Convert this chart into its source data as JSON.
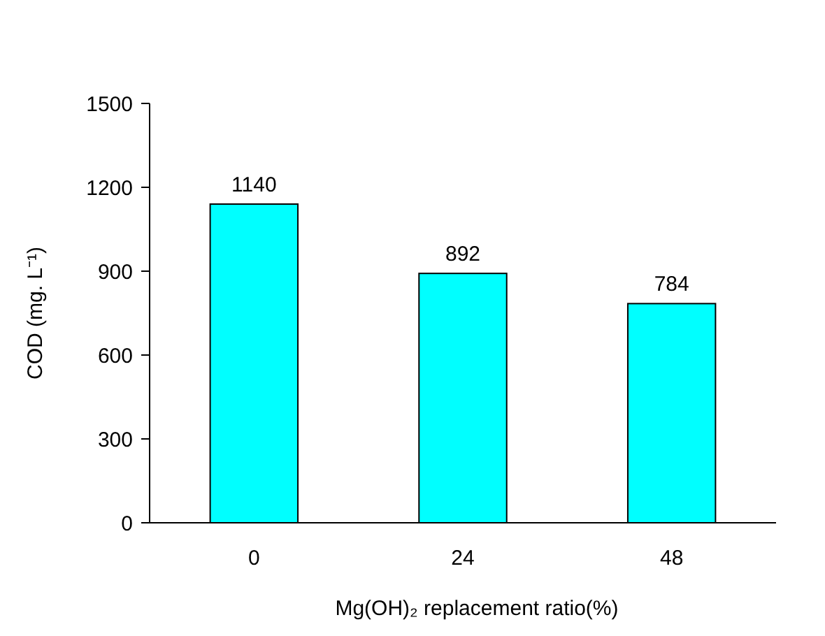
{
  "chart_data": {
    "type": "bar",
    "xlabel": "Mg(OH)₂ replacement ratio(%)",
    "ylabel": "COD (mg. L⁻¹)",
    "categories": [
      "0",
      "24",
      "48"
    ],
    "values": [
      1140,
      892,
      784
    ],
    "color": "#00ffff",
    "ylim": [
      0,
      1500
    ],
    "yticks": [
      0,
      300,
      600,
      900,
      1200,
      1500
    ],
    "data_labels": true
  }
}
